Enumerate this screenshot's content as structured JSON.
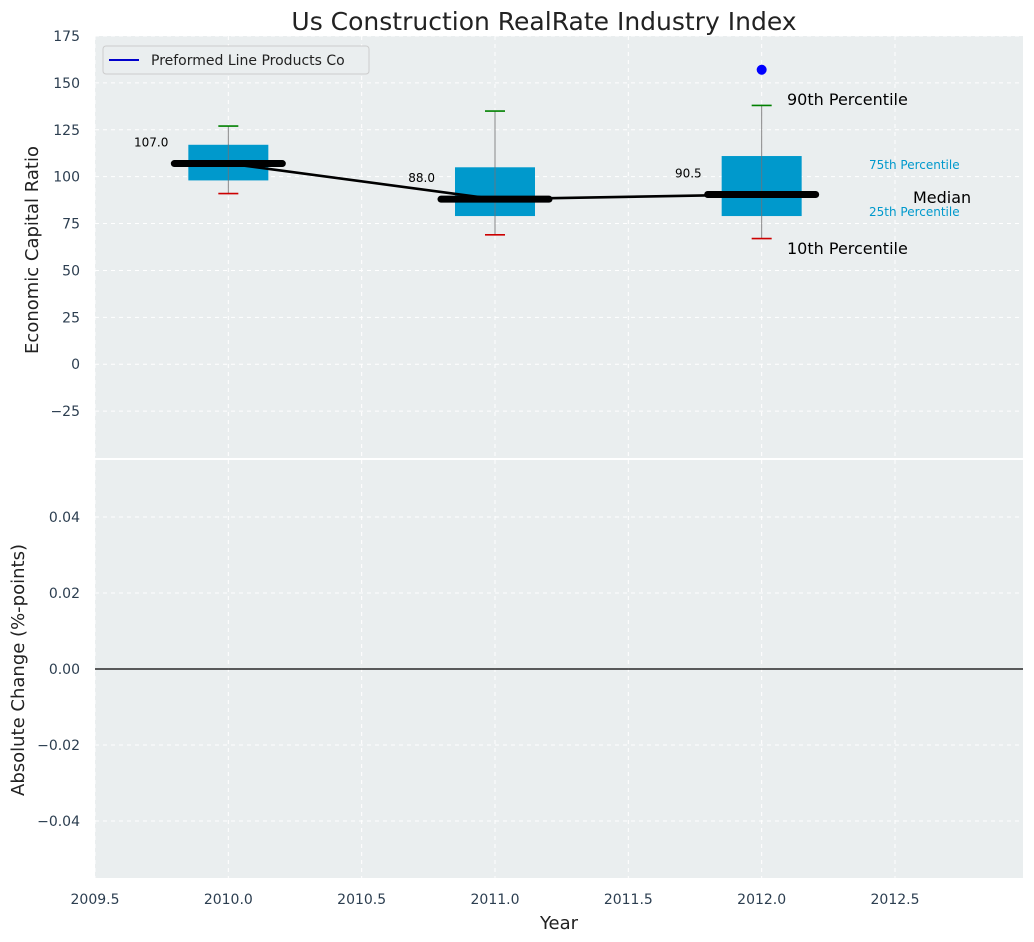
{
  "chart_data": [
    {
      "type": "box",
      "title": "Us Construction RealRate Industry Index",
      "ylabel": "Economic Capital Ratio",
      "xlim": [
        2009.5,
        2012.98
      ],
      "ylim": [
        -50,
        175
      ],
      "yticks": [
        -25,
        0,
        25,
        50,
        75,
        100,
        125,
        150,
        175
      ],
      "grid": true,
      "legend": {
        "position": "top-left",
        "entries": [
          {
            "label": "Preformed Line Products Co",
            "color": "#0000cc"
          }
        ]
      },
      "boxes": [
        {
          "x": 2010,
          "p10": 91,
          "p25": 98,
          "median": 107.0,
          "p75": 117,
          "p90": 127,
          "median_label": "107.0"
        },
        {
          "x": 2011,
          "p10": 69,
          "p25": 79,
          "median": 88.0,
          "p75": 105,
          "p90": 135,
          "median_label": "88.0"
        },
        {
          "x": 2012,
          "p10": 67,
          "p25": 79,
          "median": 90.5,
          "p75": 111,
          "p90": 138,
          "median_label": "90.5"
        }
      ],
      "median_line": {
        "x": [
          2010,
          2011,
          2012
        ],
        "y": [
          107.0,
          88.0,
          90.5
        ]
      },
      "company_points": [
        {
          "x": 2012,
          "y": 157,
          "color": "#0000ff"
        }
      ],
      "annotations": {
        "p90": "90th Percentile",
        "p75": "75th Percentile",
        "median": "Median",
        "p25": "25th Percentile",
        "p10": "10th Percentile"
      },
      "colors": {
        "box": "#0099cc",
        "median": "#000000",
        "whisker_top": "#008000",
        "whisker_bottom": "#cc0000",
        "background": "#eaeeef"
      }
    },
    {
      "type": "line",
      "xlabel": "Year",
      "ylabel": "Absolute Change (%-points)",
      "xlim": [
        2009.5,
        2012.98
      ],
      "ylim": [
        -0.055,
        0.055
      ],
      "xticks": [
        "2009.5",
        "2010.0",
        "2010.5",
        "2011.0",
        "2011.5",
        "2012.0",
        "2012.5"
      ],
      "yticks": [
        "0.04",
        "0.02",
        "0.00",
        "−0.02",
        "−0.04"
      ],
      "ytick_values": [
        0.04,
        0.02,
        0,
        -0.02,
        -0.04
      ],
      "zero_line": 0,
      "grid": true
    }
  ],
  "ui": {
    "yticks_top_text": [
      "−25",
      "0",
      "25",
      "50",
      "75",
      "100",
      "125",
      "150",
      "175"
    ]
  }
}
